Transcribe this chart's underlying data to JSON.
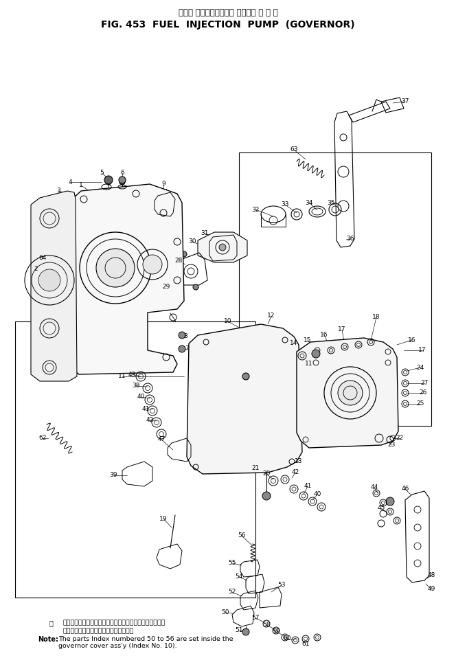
{
  "title_japanese": "フェル インジェクション ポンプ　 ガ バ ナ",
  "title_english": "FIG. 453  FUEL  INJECTION  PUMP  (GOVERNOR)",
  "note_japanese_1": "注引番号５０から５６までの部品は注引番号１０のガバナ",
  "note_japanese_2": "カバーアセンブリ内に取付けられます．",
  "note_label": "注",
  "note_english_label": "Note:",
  "note_english_1": "The parts Index numbered 50 to 56 are set inside the",
  "note_english_2": "governor cover ass'y (Index No. 10).",
  "bg_color": "#ffffff",
  "fig_width": 6.64,
  "fig_height": 9.74,
  "dpi": 100
}
